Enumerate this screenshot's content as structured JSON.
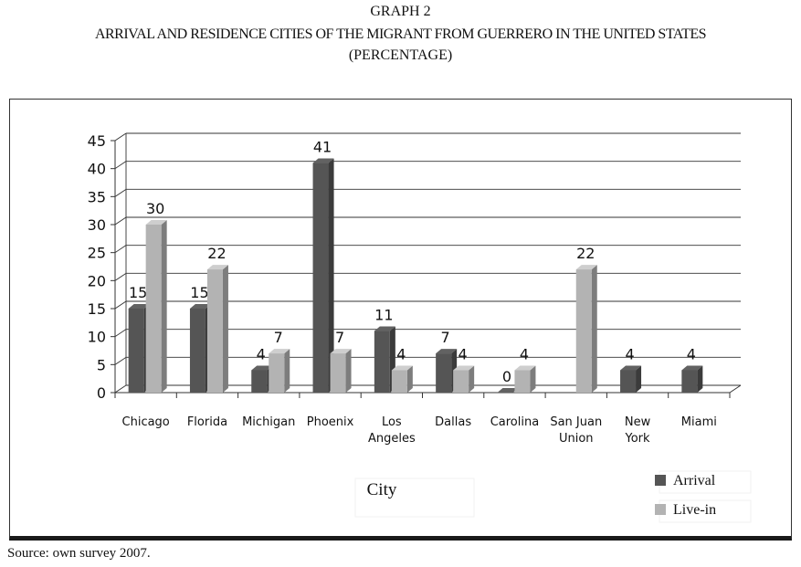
{
  "header": {
    "graph_label": "GRAPH 2",
    "title": "ARRIVAL AND RESIDENCE CITIES OF THE MIGRANT FROM GUERRERO IN THE UNITED STATES",
    "subtitle": "(PERCENTAGE)"
  },
  "chart_data": {
    "type": "bar",
    "xlabel": "City",
    "ylabel": "",
    "ylim": [
      0,
      45
    ],
    "yticks": [
      0,
      5,
      10,
      15,
      20,
      25,
      30,
      35,
      40,
      45
    ],
    "grid": true,
    "legend_position": "bottom-right",
    "categories": [
      "Chicago",
      "Florida",
      "Michigan",
      "Phoenix",
      "Los Angeles",
      "Dallas",
      "Carolina",
      "San Juan Union",
      "New York",
      "Miami"
    ],
    "series": [
      {
        "name": "Arrival",
        "color": "#555555",
        "values": [
          15,
          15,
          4,
          41,
          11,
          7,
          0,
          null,
          4,
          4
        ]
      },
      {
        "name": "Live-in",
        "color": "#b3b3b3",
        "values": [
          30,
          22,
          7,
          7,
          4,
          4,
          4,
          22,
          null,
          null
        ]
      }
    ]
  },
  "footer": {
    "source": "Source: own survey 2007."
  }
}
